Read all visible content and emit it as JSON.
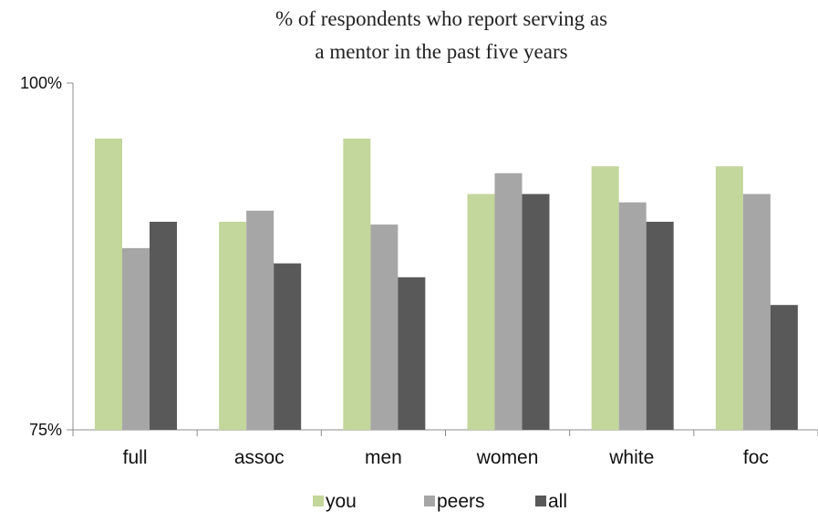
{
  "chart_data": {
    "type": "bar",
    "title_lines": [
      "% of respondents who report serving as",
      "a mentor in the past five years"
    ],
    "xlabel": "",
    "ylabel": "",
    "ylim": [
      75,
      100
    ],
    "y_ticks": [
      {
        "value": 100,
        "label": "100%"
      },
      {
        "value": 75,
        "label": "75%"
      }
    ],
    "grid": false,
    "legend_position": "bottom",
    "categories": [
      "full",
      "assoc",
      "men",
      "women",
      "white",
      "foc"
    ],
    "series": [
      {
        "name": "you",
        "color": "#c3d69b",
        "values": [
          96,
          90,
          96,
          92,
          94,
          94
        ]
      },
      {
        "name": "peers",
        "color": "#a6a6a6",
        "values": [
          88.1,
          90.8,
          89.8,
          93.5,
          91.4,
          92
        ]
      },
      {
        "name": "all",
        "color": "#595959",
        "values": [
          90,
          87,
          86,
          92,
          90,
          84
        ]
      }
    ]
  }
}
